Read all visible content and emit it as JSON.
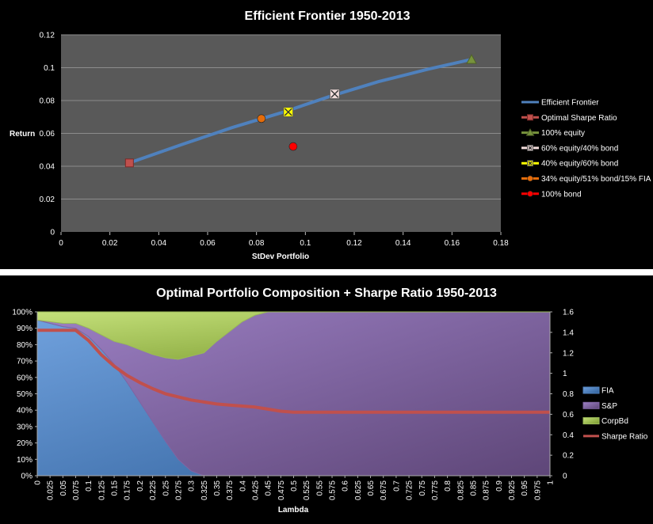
{
  "chart_data": [
    {
      "type": "scatter",
      "title": "Efficient Frontier 1950-2013",
      "xlabel": "StDev Portfolio",
      "ylabel": "Return",
      "xlim": [
        0,
        0.18
      ],
      "ylim": [
        0,
        0.12
      ],
      "xticks": [
        "0",
        "0.02",
        "0.04",
        "0.06",
        "0.08",
        "0.1",
        "0.12",
        "0.14",
        "0.16",
        "0.18"
      ],
      "yticks": [
        "0",
        "0.02",
        "0.04",
        "0.06",
        "0.08",
        "0.1",
        "0.12"
      ],
      "grid": true,
      "legend_position": "right",
      "frontier": {
        "name": "Efficient Frontier",
        "color": "#4f81bd",
        "x": [
          0.028,
          0.05,
          0.07,
          0.09,
          0.11,
          0.13,
          0.15,
          0.168
        ],
        "y": [
          0.042,
          0.0535,
          0.0635,
          0.0725,
          0.0825,
          0.0915,
          0.099,
          0.105
        ]
      },
      "points": [
        {
          "name": "Optimal Sharpe Ratio",
          "marker": "square",
          "color": "#c0504d",
          "x": 0.028,
          "y": 0.042
        },
        {
          "name": "100% equity",
          "marker": "triangle",
          "color": "#77933c",
          "x": 0.168,
          "y": 0.105
        },
        {
          "name": "60% equity/40% bond",
          "marker": "xsquare",
          "color": "#f2dcdb",
          "x": 0.112,
          "y": 0.084
        },
        {
          "name": "40% equity/60% bond",
          "marker": "xsquare",
          "color": "#ffff00",
          "x": 0.093,
          "y": 0.073
        },
        {
          "name": "34% equity/51% bond/15% FIA",
          "marker": "circle",
          "color": "#e46c0a",
          "x": 0.082,
          "y": 0.069
        },
        {
          "name": "100% bond",
          "marker": "circle",
          "color": "#ff0000",
          "x": 0.095,
          "y": 0.052
        }
      ]
    },
    {
      "type": "area",
      "title": "Optimal Portfolio Composition + Sharpe Ratio 1950-2013",
      "xlabel": "Lambda",
      "ylabel": "",
      "ylim": [
        0,
        1
      ],
      "y2lim": [
        0,
        1.6
      ],
      "yticks": [
        "0%",
        "10%",
        "20%",
        "30%",
        "40%",
        "50%",
        "60%",
        "70%",
        "80%",
        "90%",
        "100%"
      ],
      "y2ticks": [
        "0",
        "0.2",
        "0.4",
        "0.6",
        "0.8",
        "1",
        "1.2",
        "1.4",
        "1.6"
      ],
      "categories": [
        "0",
        "0.025",
        "0.05",
        "0.075",
        "0.1",
        "0.125",
        "0.15",
        "0.175",
        "0.2",
        "0.225",
        "0.25",
        "0.275",
        "0.3",
        "0.325",
        "0.35",
        "0.375",
        "0.4",
        "0.425",
        "0.45",
        "0.475",
        "0.5",
        "0.525",
        "0.55",
        "0.575",
        "0.6",
        "0.625",
        "0.65",
        "0.675",
        "0.7",
        "0.725",
        "0.75",
        "0.775",
        "0.8",
        "0.825",
        "0.85",
        "0.875",
        "0.9",
        "0.925",
        "0.95",
        "0.975",
        "1"
      ],
      "legend_position": "right",
      "series": [
        {
          "name": "FIA",
          "kind": "stacked-area",
          "color": "#4f81bd",
          "values": [
            0.95,
            0.93,
            0.91,
            0.9,
            0.85,
            0.77,
            0.68,
            0.57,
            0.45,
            0.33,
            0.21,
            0.1,
            0.03,
            0,
            0,
            0,
            0,
            0,
            0,
            0,
            0,
            0,
            0,
            0,
            0,
            0,
            0,
            0,
            0,
            0,
            0,
            0,
            0,
            0,
            0,
            0,
            0,
            0,
            0,
            0,
            0
          ]
        },
        {
          "name": "S&P",
          "kind": "stacked-area",
          "color": "#8064a2",
          "values": [
            0,
            0.01,
            0.02,
            0.03,
            0.05,
            0.09,
            0.14,
            0.23,
            0.32,
            0.41,
            0.51,
            0.61,
            0.7,
            0.75,
            0.82,
            0.88,
            0.94,
            0.98,
            1,
            1,
            1,
            1,
            1,
            1,
            1,
            1,
            1,
            1,
            1,
            1,
            1,
            1,
            1,
            1,
            1,
            1,
            1,
            1,
            1,
            1,
            1
          ]
        },
        {
          "name": "CorpBd",
          "kind": "stacked-area",
          "color": "#9bbb59",
          "values": [
            0.05,
            0.06,
            0.07,
            0.09,
            0.1,
            0.14,
            0.18,
            0.2,
            0.23,
            0.26,
            0.28,
            0.29,
            0.27,
            0.25,
            0.18,
            0.12,
            0.06,
            0.02,
            0,
            0,
            0,
            0,
            0,
            0,
            0,
            0,
            0,
            0,
            0,
            0,
            0,
            0,
            0,
            0,
            0,
            0,
            0,
            0,
            0,
            0,
            0
          ]
        },
        {
          "name": "Sharpe Ratio",
          "kind": "line",
          "axis": "right",
          "color": "#c0504d",
          "values": [
            1.42,
            1.42,
            1.42,
            1.42,
            1.32,
            1.18,
            1.07,
            0.98,
            0.91,
            0.85,
            0.8,
            0.77,
            0.74,
            0.72,
            0.7,
            0.69,
            0.68,
            0.67,
            0.65,
            0.63,
            0.62,
            0.62,
            0.62,
            0.62,
            0.62,
            0.62,
            0.62,
            0.62,
            0.62,
            0.62,
            0.62,
            0.62,
            0.62,
            0.62,
            0.62,
            0.62,
            0.62,
            0.62,
            0.62,
            0.62,
            0.62
          ]
        }
      ]
    }
  ]
}
